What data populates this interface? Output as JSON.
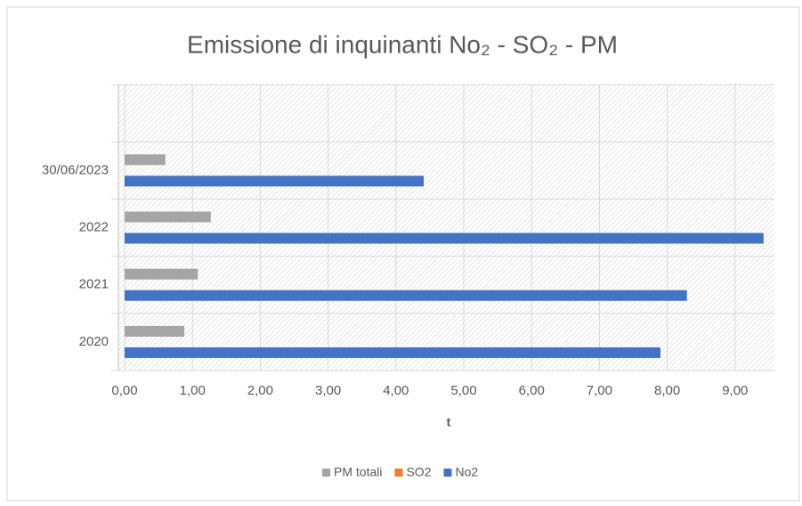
{
  "chart_data": {
    "type": "bar",
    "orientation": "horizontal",
    "title": "Emissione di inquinanti No₂ - SO₂ - PM",
    "xlabel": "t",
    "categories": [
      "2020",
      "2021",
      "2022",
      "30/06/2023",
      null
    ],
    "series": [
      {
        "name": "PM totali",
        "color": "#a5a5a5",
        "values": [
          0.88,
          1.08,
          1.27,
          0.6,
          null
        ]
      },
      {
        "name": "SO2",
        "color": "#ed7d31",
        "values": [
          0,
          0,
          0,
          0,
          null
        ]
      },
      {
        "name": "No2",
        "color": "#4472c4",
        "values": [
          7.9,
          8.29,
          9.42,
          4.41,
          null
        ]
      }
    ],
    "xlim": [
      0,
      9.58
    ],
    "xticks": [
      {
        "value": 0,
        "label": "0,00"
      },
      {
        "value": 1,
        "label": "1,00"
      },
      {
        "value": 2,
        "label": "2,00"
      },
      {
        "value": 3,
        "label": "3,00"
      },
      {
        "value": 4,
        "label": "4,00"
      },
      {
        "value": 5,
        "label": "5,00"
      },
      {
        "value": 6,
        "label": "6,00"
      },
      {
        "value": 7,
        "label": "7,00"
      },
      {
        "value": 8,
        "label": "8,00"
      },
      {
        "value": 9,
        "label": "9,00"
      }
    ],
    "grid": true,
    "legend": "bottom"
  }
}
